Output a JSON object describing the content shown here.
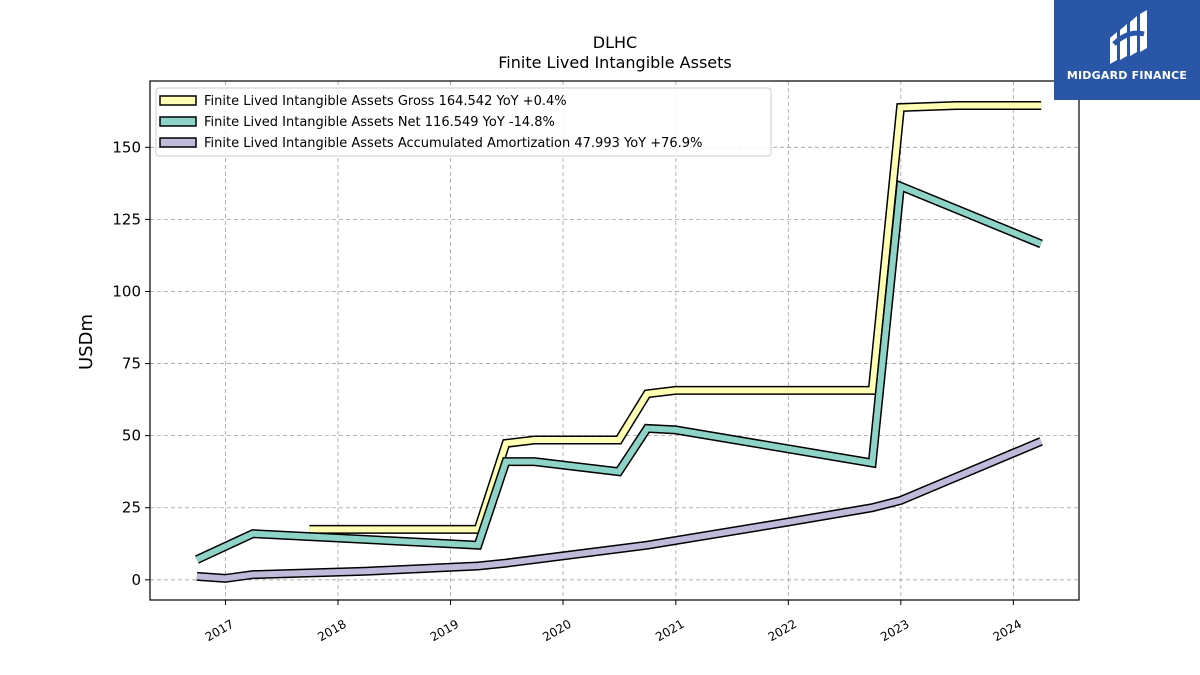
{
  "brand": {
    "name": "MIDGARD FINANCE",
    "bg_color": "#2a56a8",
    "icon": "midgard-logo-icon"
  },
  "chart_data": {
    "type": "line",
    "title": "DLHC",
    "subtitle": "Finite Lived Intangible Assets",
    "ylabel": "USDm",
    "xlabel": "",
    "x_ticks": [
      "2017",
      "2018",
      "2019",
      "2020",
      "2021",
      "2022",
      "2023",
      "2024"
    ],
    "y_ticks": [
      0,
      25,
      50,
      75,
      100,
      125,
      150
    ],
    "ylim": [
      -7,
      173
    ],
    "xlim": [
      "2016-05-01",
      "2024-08-01"
    ],
    "grid": true,
    "legend_position": "top-left",
    "series": [
      {
        "name": "Finite Lived Intangible Assets Gross  164.542 YoY +0.4%",
        "color": "#ffffb3",
        "x": [
          "2017-09-30",
          "2019-03-31",
          "2019-06-30",
          "2019-09-30",
          "2019-12-31",
          "2020-03-31",
          "2020-06-30",
          "2020-09-30",
          "2020-12-31",
          "2021-12-31",
          "2022-09-30",
          "2022-12-31",
          "2023-06-30",
          "2024-03-31"
        ],
        "y": [
          17.5,
          17.5,
          47.3,
          48.5,
          48.5,
          48.5,
          48.5,
          64.5,
          65.7,
          65.7,
          65.7,
          163.8,
          164.5,
          164.5
        ]
      },
      {
        "name": "Finite Lived Intangible Assets Net  116.549 YoY -14.8%",
        "color": "#8dd3c7",
        "x": [
          "2016-09-30",
          "2017-03-31",
          "2019-03-31",
          "2019-06-30",
          "2019-09-30",
          "2020-06-30",
          "2020-09-30",
          "2020-12-31",
          "2022-09-30",
          "2022-12-31",
          "2024-03-31"
        ],
        "y": [
          7.0,
          16.0,
          12.0,
          41.0,
          41.0,
          37.5,
          52.5,
          52.0,
          40.5,
          136.5,
          116.5
        ]
      },
      {
        "name": "Finite Lived Intangible Assets Accumulated Amortization  47.993 YoY +76.9%",
        "color": "#bebada",
        "x": [
          "2016-09-30",
          "2016-12-31",
          "2017-03-31",
          "2018-03-31",
          "2019-03-31",
          "2019-06-30",
          "2020-09-30",
          "2021-12-31",
          "2022-09-30",
          "2022-12-31",
          "2024-03-31"
        ],
        "y": [
          1.2,
          0.5,
          1.8,
          3.0,
          4.8,
          5.8,
          12.0,
          20.0,
          25.0,
          27.5,
          48.0
        ]
      }
    ]
  }
}
